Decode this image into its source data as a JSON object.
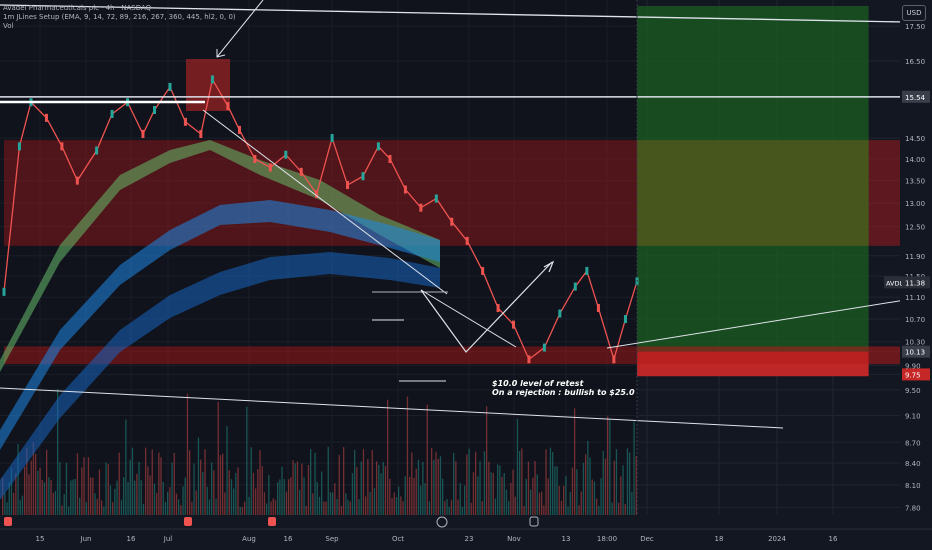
{
  "header": {
    "symbol_line": "Avadel Pharmaceuticals plc · 4h · NASDAQ",
    "indicator_line": "1m JLines Setup (EMA, 9, 14, 72, 89, 216, 267, 360, 445, hl2, 0, 0)",
    "volume_line": "Vol"
  },
  "currency_badge": "USD",
  "annotations": {
    "line1": "$10.0 level of retest",
    "line2": "On a rejection : bullish to $25.0"
  },
  "chart_data": {
    "type": "line",
    "price_axis": {
      "ticks": [
        "17.50",
        "16.50",
        "15.54",
        "14.50",
        "14.00",
        "13.50",
        "13.00",
        "12.50",
        "11.90",
        "11.50",
        "11.10",
        "10.70",
        "10.30",
        "10.13",
        "9.90",
        "9.75",
        "9.50",
        "9.10",
        "8.70",
        "8.40",
        "8.10",
        "7.80"
      ],
      "ylim": [
        7.7,
        18.1
      ],
      "scale": "log"
    },
    "time_axis": {
      "ticks": [
        "15",
        "Jun",
        "16",
        "Jul",
        "Aug",
        "16",
        "Sep",
        "Oct",
        "23",
        "Nov",
        "13",
        "18:00",
        "Dec",
        "18",
        "2024",
        "16"
      ]
    },
    "price_labels": [
      {
        "name": "AVDL",
        "value": "11.38",
        "color": "#2a2e39"
      },
      {
        "name": "",
        "value": "15.54",
        "color": "#3a3e4a"
      },
      {
        "name": "",
        "value": "10.13",
        "color": "#3a3e4a"
      },
      {
        "name": "",
        "value": "9.75",
        "color": "#c62828"
      }
    ],
    "price_series": {
      "name": "AVDL 4h close",
      "x": [
        "May 08",
        "May 12",
        "May 15",
        "May 19",
        "May 23",
        "May 27",
        "Jun 01",
        "Jun 05",
        "Jun 09",
        "Jun 13",
        "Jun 16",
        "Jun 20",
        "Jun 24",
        "Jun 28",
        "Jul 01",
        "Jul 05",
        "Jul 08",
        "Jul 12",
        "Jul 16",
        "Jul 20",
        "Jul 24",
        "Jul 28",
        "Aug 01",
        "Aug 05",
        "Aug 09",
        "Aug 13",
        "Aug 16",
        "Aug 20",
        "Aug 24",
        "Aug 28",
        "Sep 01",
        "Sep 05",
        "Sep 09",
        "Sep 13",
        "Sep 17",
        "Sep 21",
        "Sep 25",
        "Sep 29",
        "Oct 03",
        "Oct 06",
        "Oct 09",
        "Oct 13",
        "Oct 16",
        "Oct 19"
      ],
      "y": [
        11.2,
        14.3,
        15.4,
        15.0,
        14.3,
        13.5,
        14.2,
        15.1,
        15.4,
        14.6,
        15.2,
        15.8,
        14.9,
        14.6,
        16.0,
        15.3,
        14.7,
        14.0,
        13.8,
        14.1,
        13.7,
        13.2,
        14.5,
        13.4,
        13.6,
        14.3,
        14.0,
        13.3,
        12.9,
        13.1,
        12.6,
        12.2,
        11.6,
        10.9,
        10.6,
        10.0,
        10.2,
        10.8,
        11.3,
        11.6,
        10.9,
        10.0,
        10.7,
        11.4
      ],
      "color": "#ef5350"
    },
    "zones": [
      {
        "label": "upper resistance band",
        "y_range": [
          12.1,
          14.45
        ],
        "x_range": [
          "May 08",
          "Dec 31"
        ],
        "color": "#b71c1c"
      },
      {
        "label": "target profit zone",
        "y_range": [
          10.13,
          18.1
        ],
        "x_range": [
          "Oct 19",
          "Dec 18"
        ],
        "color": "#1b5e20"
      },
      {
        "label": "stop zone",
        "y_range": [
          9.72,
          10.13
        ],
        "x_range": [
          "Oct 19",
          "Dec 18"
        ],
        "color": "#c62828"
      },
      {
        "label": "support band",
        "y_range": [
          9.92,
          10.22
        ],
        "x_range": [
          "May 08",
          "Dec 31"
        ],
        "color": "#b71c1c"
      }
    ],
    "ribbons": [
      {
        "name": "EMA 72/89",
        "color": "#66bb6a"
      },
      {
        "name": "EMA 216/267",
        "color": "#1e88e5"
      },
      {
        "name": "EMA 360/445",
        "color": "#1565c0"
      }
    ],
    "grid": true
  }
}
